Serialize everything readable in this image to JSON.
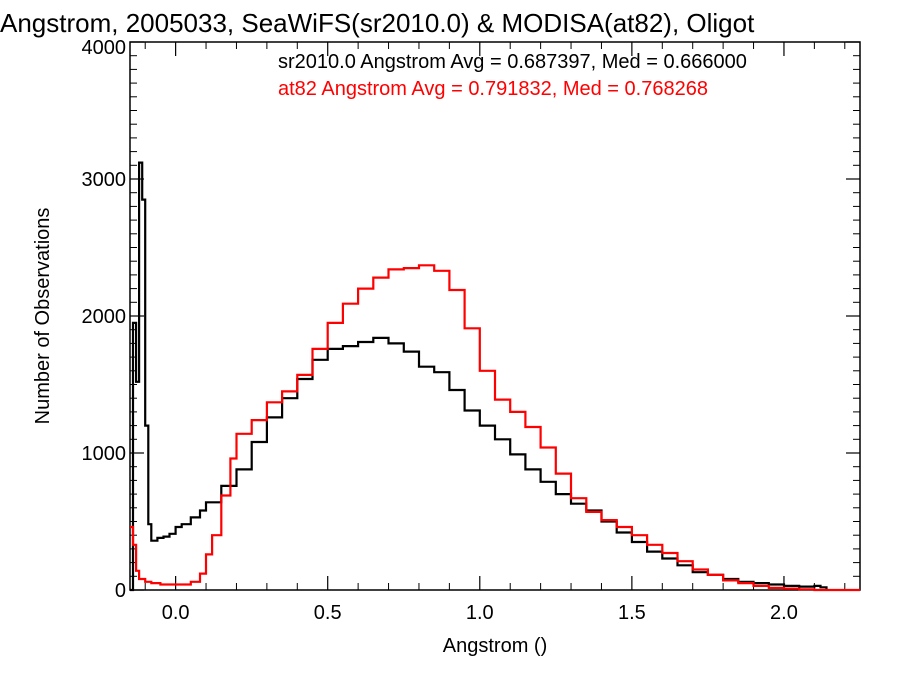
{
  "chart_data": {
    "type": "line",
    "title": "Angstrom, 2005033, SeaWiFS(sr2010.0) & MODISA(at82), Oligot",
    "xlabel": "Angstrom ()",
    "ylabel": "Number of Observations",
    "xlim": [
      -0.15,
      2.25
    ],
    "ylim": [
      0,
      4000
    ],
    "x_ticks": [
      0.0,
      0.5,
      1.0,
      1.5,
      2.0
    ],
    "x_tick_labels": [
      "0.0",
      "0.5",
      "1.0",
      "1.5",
      "2.0"
    ],
    "y_ticks": [
      0,
      1000,
      2000,
      3000,
      4000
    ],
    "y_tick_labels": [
      "0",
      "1000",
      "2000",
      "3000",
      "4000"
    ],
    "grid": false,
    "step": true,
    "annotations": [
      {
        "text": "sr2010.0 Angstrom Avg = 0.687397, Med = 0.666000",
        "color": "#000000"
      },
      {
        "text": "at82 Angstrom Avg = 0.791832, Med = 0.768268",
        "color": "#ff0000"
      }
    ],
    "series": [
      {
        "color": "#000000",
        "x": [
          -0.15,
          -0.14,
          -0.13,
          -0.12,
          -0.11,
          -0.1,
          -0.09,
          -0.08,
          -0.06,
          -0.04,
          -0.02,
          0.0,
          0.02,
          0.05,
          0.08,
          0.1,
          0.15,
          0.2,
          0.25,
          0.3,
          0.35,
          0.4,
          0.45,
          0.5,
          0.55,
          0.6,
          0.65,
          0.7,
          0.75,
          0.8,
          0.85,
          0.9,
          0.95,
          1.0,
          1.05,
          1.1,
          1.15,
          1.2,
          1.25,
          1.3,
          1.35,
          1.4,
          1.45,
          1.5,
          1.55,
          1.6,
          1.65,
          1.7,
          1.75,
          1.8,
          1.85,
          1.9,
          1.95,
          2.0,
          2.05,
          2.1,
          2.12,
          2.14
        ],
        "y": [
          0,
          1950,
          1520,
          3120,
          2850,
          1200,
          480,
          360,
          380,
          390,
          410,
          460,
          480,
          530,
          580,
          640,
          760,
          880,
          1080,
          1260,
          1400,
          1540,
          1680,
          1760,
          1780,
          1810,
          1840,
          1800,
          1740,
          1630,
          1590,
          1460,
          1310,
          1200,
          1100,
          990,
          880,
          790,
          700,
          630,
          580,
          500,
          420,
          350,
          280,
          230,
          180,
          130,
          110,
          80,
          60,
          50,
          40,
          30,
          25,
          30,
          20,
          0
        ]
      },
      {
        "color": "#ff0000",
        "x": [
          -0.15,
          -0.14,
          -0.13,
          -0.12,
          -0.1,
          -0.08,
          -0.05,
          0.0,
          0.05,
          0.08,
          0.1,
          0.12,
          0.15,
          0.18,
          0.2,
          0.25,
          0.3,
          0.35,
          0.4,
          0.45,
          0.5,
          0.55,
          0.6,
          0.65,
          0.7,
          0.75,
          0.8,
          0.85,
          0.9,
          0.95,
          1.0,
          1.05,
          1.1,
          1.15,
          1.2,
          1.25,
          1.3,
          1.35,
          1.4,
          1.45,
          1.5,
          1.55,
          1.6,
          1.65,
          1.7,
          1.75,
          1.8,
          1.85,
          1.9,
          1.95,
          2.0,
          2.05,
          2.1,
          2.25
        ],
        "y": [
          460,
          330,
          140,
          80,
          60,
          50,
          40,
          40,
          60,
          120,
          260,
          400,
          690,
          960,
          1140,
          1240,
          1370,
          1450,
          1570,
          1760,
          1950,
          2090,
          2200,
          2280,
          2340,
          2350,
          2370,
          2330,
          2190,
          1910,
          1600,
          1390,
          1300,
          1190,
          1040,
          850,
          670,
          570,
          510,
          460,
          400,
          330,
          270,
          210,
          150,
          110,
          70,
          50,
          30,
          15,
          10,
          5,
          0,
          0
        ]
      }
    ]
  }
}
